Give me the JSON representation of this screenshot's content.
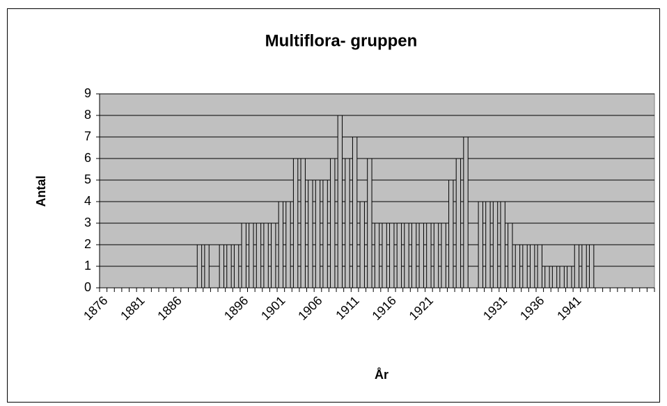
{
  "chart_data": {
    "type": "bar",
    "title": "Multiflora- gruppen",
    "x_label": "År",
    "y_label": "Antal",
    "categories": [
      "1876",
      null,
      null,
      null,
      null,
      "1881",
      null,
      null,
      null,
      null,
      "1886",
      null,
      null,
      null,
      null,
      null,
      null,
      null,
      null,
      "1896",
      null,
      null,
      null,
      null,
      "1901",
      null,
      null,
      null,
      null,
      "1906",
      null,
      null,
      null,
      null,
      "1911",
      null,
      null,
      null,
      null,
      "1916",
      null,
      null,
      null,
      null,
      "1921",
      null,
      null,
      null,
      null,
      null,
      null,
      null,
      null,
      null,
      "1931",
      null,
      null,
      null,
      null,
      "1936",
      null,
      null,
      null,
      null,
      "1941",
      null,
      null,
      null,
      null,
      null,
      null,
      null,
      null,
      null,
      null
    ],
    "values": [
      null,
      null,
      null,
      null,
      null,
      null,
      null,
      null,
      null,
      null,
      null,
      null,
      null,
      2,
      2,
      null,
      2,
      2,
      2,
      3,
      3,
      3,
      3,
      3,
      4,
      4,
      6,
      6,
      5,
      5,
      5,
      6,
      8,
      6,
      7,
      4,
      6,
      3,
      3,
      3,
      3,
      3,
      3,
      3,
      3,
      3,
      3,
      5,
      6,
      7,
      null,
      4,
      4,
      4,
      4,
      3,
      2,
      2,
      2,
      2,
      1,
      1,
      1,
      1,
      2,
      2,
      2,
      null,
      null,
      null,
      null,
      null,
      null,
      null,
      null
    ],
    "color": "#c0c0c0",
    "plot_background": "#c0c0c0",
    "ylim": [
      0,
      9
    ],
    "yticks": [
      0,
      1,
      2,
      3,
      4,
      5,
      6,
      7,
      8,
      9
    ],
    "grid": true
  }
}
